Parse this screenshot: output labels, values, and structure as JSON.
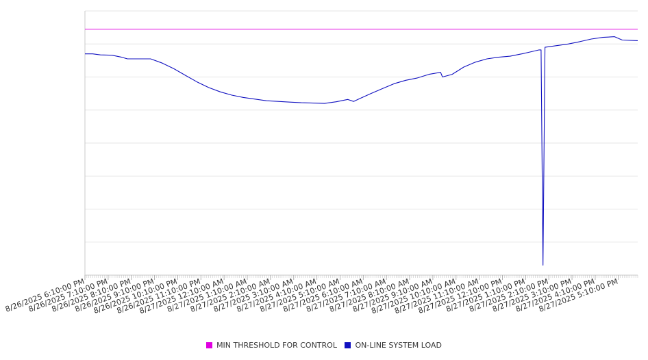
{
  "chart_data": {
    "type": "line",
    "title": "",
    "xlabel": "",
    "ylabel": "",
    "x_tick_labels": [
      "8/26/2025 6:10:00 PM",
      "8/26/2025 7:10:00 PM",
      "8/26/2025 8:10:00 PM",
      "8/26/2025 9:10:00 PM",
      "8/26/2025 10:10:00 PM",
      "8/26/2025 11:10:00 PM",
      "8/27/2025 12:10:00 AM",
      "8/27/2025 1:10:00 AM",
      "8/27/2025 2:10:00 AM",
      "8/27/2025 3:10:00 AM",
      "8/27/2025 4:10:00 AM",
      "8/27/2025 5:10:00 AM",
      "8/27/2025 6:10:00 AM",
      "8/27/2025 7:10:00 AM",
      "8/27/2025 8:10:00 AM",
      "8/27/2025 9:10:00 AM",
      "8/27/2025 10:10:00 AM",
      "8/27/2025 11:10:00 AM",
      "8/27/2025 12:10:00 PM",
      "8/27/2025 1:10:00 PM",
      "8/27/2025 2:10:00 PM",
      "8/27/2025 3:10:00 PM",
      "8/27/2025 4:10:00 PM",
      "8/27/2025 5:10:00 PM"
    ],
    "xlim": [
      "8/26/2025 6:10:00 PM",
      "8/27/2025 6:00:00 PM"
    ],
    "ylim": [
      0,
      8
    ],
    "y_gridlines": 8,
    "y_tick_labels_shown": false,
    "grid": true,
    "legend_position": "bottom-center",
    "series": [
      {
        "name": "MIN THRESHOLD FOR CONTROL",
        "color": "#e000e0",
        "points": [
          [
            "8/26/2025 6:10:00 PM",
            7.45
          ],
          [
            "8/27/2025 6:00:00 PM",
            7.45
          ]
        ]
      },
      {
        "name": "ON-LINE SYSTEM LOAD",
        "color": "#1010c0",
        "points": [
          [
            "8/26/2025 6:10:00 PM",
            6.7
          ],
          [
            "8/26/2025 6:30:00 PM",
            6.7
          ],
          [
            "8/26/2025 6:50:00 PM",
            6.67
          ],
          [
            "8/26/2025 7:20:00 PM",
            6.66
          ],
          [
            "8/26/2025 7:45:00 PM",
            6.6
          ],
          [
            "8/26/2025 8:00:00 PM",
            6.55
          ],
          [
            "8/26/2025 8:30:00 PM",
            6.55
          ],
          [
            "8/26/2025 9:00:00 PM",
            6.55
          ],
          [
            "8/26/2025 9:30:00 PM",
            6.42
          ],
          [
            "8/26/2025 10:00:00 PM",
            6.25
          ],
          [
            "8/26/2025 10:30:00 PM",
            6.05
          ],
          [
            "8/26/2025 11:00:00 PM",
            5.85
          ],
          [
            "8/26/2025 11:30:00 PM",
            5.68
          ],
          [
            "8/27/2025 12:00:00 AM",
            5.55
          ],
          [
            "8/27/2025 12:30:00 AM",
            5.45
          ],
          [
            "8/27/2025 1:00:00 AM",
            5.38
          ],
          [
            "8/27/2025 1:30:00 AM",
            5.33
          ],
          [
            "8/27/2025 2:00:00 AM",
            5.28
          ],
          [
            "8/27/2025 2:30:00 AM",
            5.26
          ],
          [
            "8/27/2025 3:00:00 AM",
            5.24
          ],
          [
            "8/27/2025 3:30:00 AM",
            5.22
          ],
          [
            "8/27/2025 4:00:00 AM",
            5.21
          ],
          [
            "8/27/2025 4:30:00 AM",
            5.2
          ],
          [
            "8/27/2025 5:00:00 AM",
            5.25
          ],
          [
            "8/27/2025 5:30:00 AM",
            5.32
          ],
          [
            "8/27/2025 5:45:00 AM",
            5.26
          ],
          [
            "8/27/2025 6:00:00 AM",
            5.34
          ],
          [
            "8/27/2025 6:30:00 AM",
            5.5
          ],
          [
            "8/27/2025 7:00:00 AM",
            5.65
          ],
          [
            "8/27/2025 7:30:00 AM",
            5.8
          ],
          [
            "8/27/2025 8:00:00 AM",
            5.9
          ],
          [
            "8/27/2025 8:30:00 AM",
            5.97
          ],
          [
            "8/27/2025 9:00:00 AM",
            6.08
          ],
          [
            "8/27/2025 9:30:00 AM",
            6.14
          ],
          [
            "8/27/2025 9:35:00 AM",
            6.0
          ],
          [
            "8/27/2025 10:00:00 AM",
            6.08
          ],
          [
            "8/27/2025 10:30:00 AM",
            6.3
          ],
          [
            "8/27/2025 11:00:00 AM",
            6.45
          ],
          [
            "8/27/2025 11:30:00 AM",
            6.55
          ],
          [
            "8/27/2025 12:00:00 PM",
            6.6
          ],
          [
            "8/27/2025 12:30:00 PM",
            6.63
          ],
          [
            "8/27/2025 1:00:00 PM",
            6.7
          ],
          [
            "8/27/2025 1:30:00 PM",
            6.78
          ],
          [
            "8/27/2025 1:45:00 PM",
            6.82
          ],
          [
            "8/27/2025 1:50:00 PM",
            6.82
          ],
          [
            "8/27/2025 1:55:00 PM",
            0.3
          ],
          [
            "8/27/2025 2:00:00 PM",
            6.9
          ],
          [
            "8/27/2025 2:30:00 PM",
            6.95
          ],
          [
            "8/27/2025 3:00:00 PM",
            7.0
          ],
          [
            "8/27/2025 3:30:00 PM",
            7.07
          ],
          [
            "8/27/2025 4:00:00 PM",
            7.15
          ],
          [
            "8/27/2025 4:30:00 PM",
            7.2
          ],
          [
            "8/27/2025 5:00:00 PM",
            7.22
          ],
          [
            "8/27/2025 5:20:00 PM",
            7.12
          ],
          [
            "8/27/2025 6:00:00 PM",
            7.1
          ]
        ]
      }
    ]
  }
}
